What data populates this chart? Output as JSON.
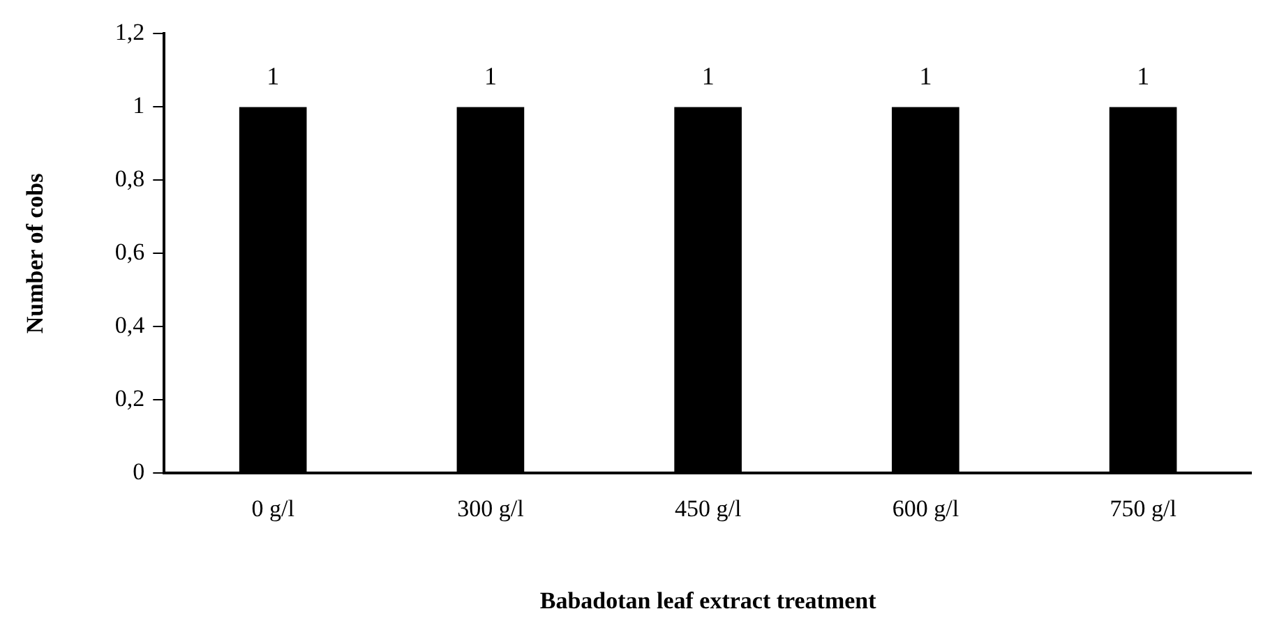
{
  "chart_data": {
    "type": "bar",
    "xlabel": "Babadotan leaf extract treatment",
    "ylabel": "Number of cobs",
    "categories": [
      "0 g/l",
      "300 g/l",
      "450 g/l",
      "600 g/l",
      "750 g/l"
    ],
    "values": [
      1,
      1,
      1,
      1,
      1
    ],
    "color": "#000000",
    "ylim": [
      0,
      1.2
    ],
    "yticks": [
      0,
      {
        "value": 0.2,
        "label": "0,2"
      },
      {
        "value": 0.4,
        "label": "0,4"
      },
      {
        "value": 0.6,
        "label": "0,6"
      },
      {
        "value": 0.8,
        "label": "0,8"
      },
      1,
      {
        "value": 1.2,
        "label": "1,2"
      }
    ],
    "grid": false,
    "legend": false,
    "data_labels": true
  }
}
